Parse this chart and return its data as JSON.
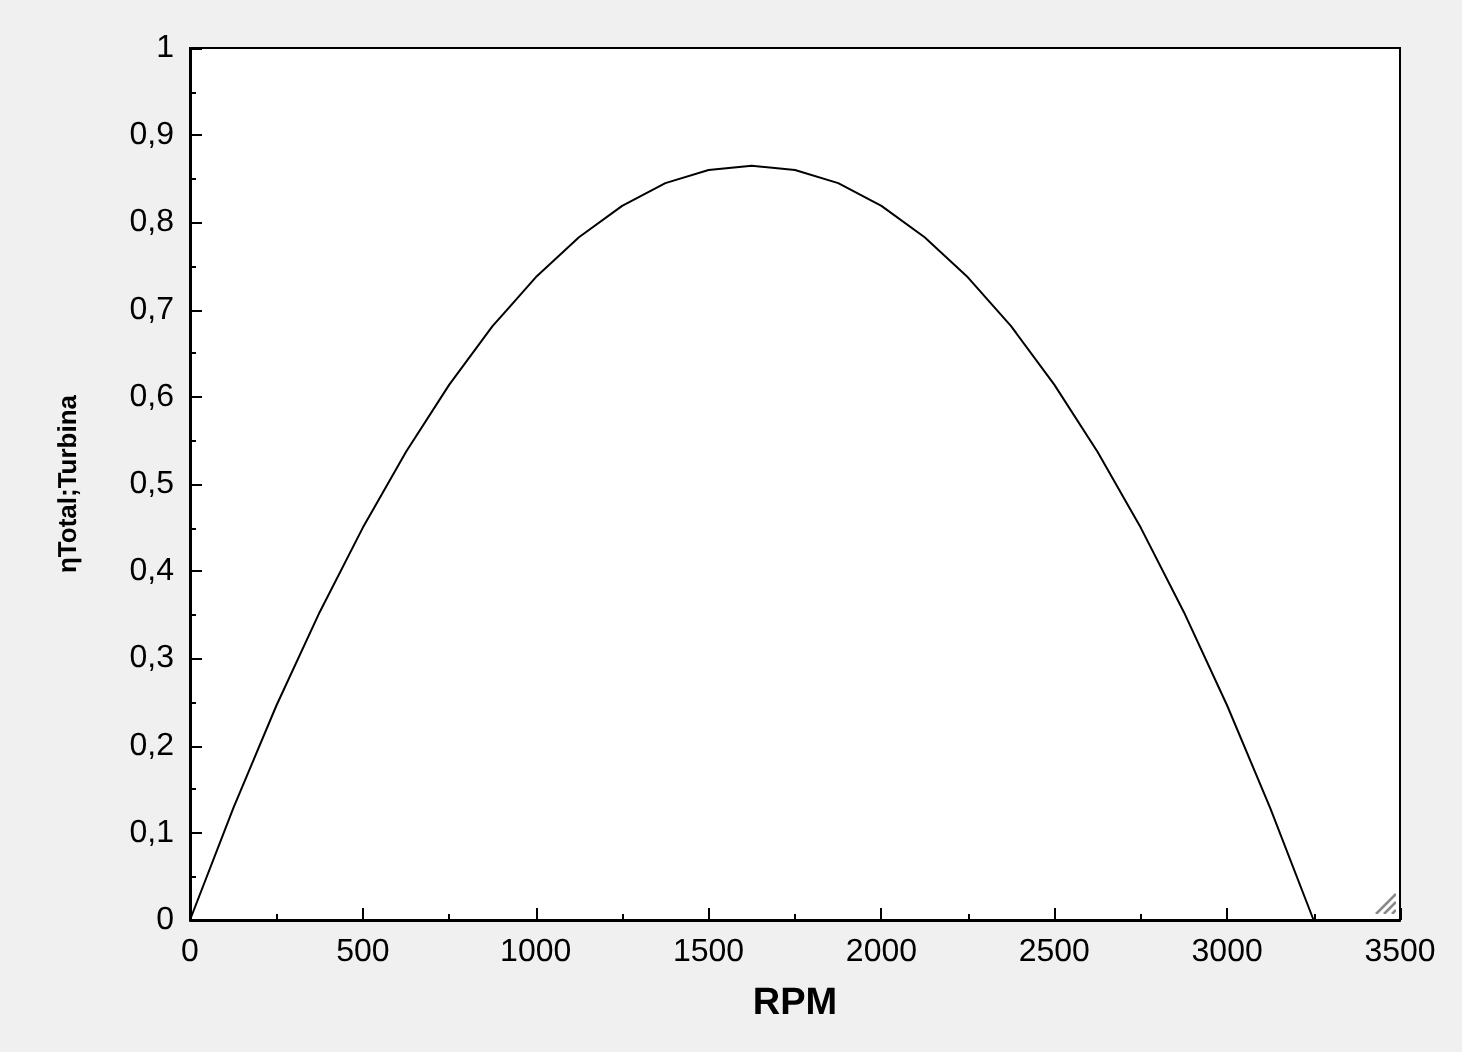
{
  "chart_data": {
    "type": "line",
    "xlabel": "RPM",
    "ylabel": "ηTotal;Turbina",
    "x": [
      0,
      125,
      250,
      375,
      500,
      625,
      750,
      875,
      1000,
      1125,
      1250,
      1375,
      1500,
      1625,
      1750,
      1875,
      2000,
      2125,
      2250,
      2375,
      2500,
      2625,
      2750,
      2875,
      3000,
      3125,
      3250
    ],
    "series": [
      {
        "color": "#000000",
        "values": [
          0,
          0.128,
          0.246,
          0.353,
          0.45,
          0.537,
          0.614,
          0.681,
          0.737,
          0.783,
          0.819,
          0.845,
          0.86,
          0.865,
          0.86,
          0.845,
          0.819,
          0.783,
          0.737,
          0.681,
          0.614,
          0.537,
          0.45,
          0.353,
          0.246,
          0.128,
          0
        ]
      }
    ],
    "xlim": [
      0,
      3500
    ],
    "xticks": [
      0,
      500,
      1000,
      1500,
      2000,
      2500,
      3000,
      3500
    ],
    "ylim": [
      0,
      1
    ],
    "yticks": [
      0,
      {
        "value": 0.1,
        "label": "0,1"
      },
      {
        "value": 0.2,
        "label": "0,2"
      },
      {
        "value": 0.3,
        "label": "0,3"
      },
      {
        "value": 0.4,
        "label": "0,4"
      },
      {
        "value": 0.5,
        "label": "0,5"
      },
      {
        "value": 0.6,
        "label": "0,6"
      },
      {
        "value": 0.7,
        "label": "0,7"
      },
      {
        "value": 0.8,
        "label": "0,8"
      },
      {
        "value": 0.9,
        "label": "0,9"
      },
      1
    ],
    "grid": false,
    "marker": "none",
    "line_style": "solid"
  }
}
